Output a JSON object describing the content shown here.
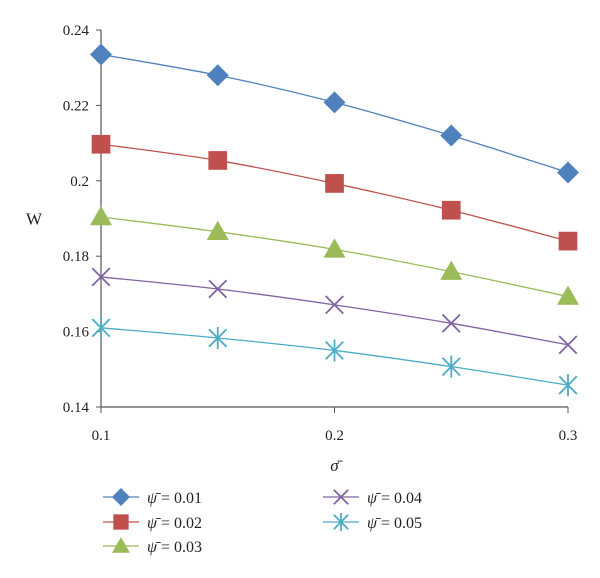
{
  "chart_data": {
    "type": "line",
    "xlabel": "σ̄",
    "ylabel": "W",
    "xlim": [
      0.1,
      0.3
    ],
    "ylim": [
      0.14,
      0.24
    ],
    "x_ticks": [
      "0.1",
      "0.2",
      "0.3"
    ],
    "y_ticks": [
      "0.14",
      "0.16",
      "0.18",
      "0.2",
      "0.22",
      "0.24"
    ],
    "x": [
      0.1,
      0.15,
      0.2,
      0.25,
      0.3
    ],
    "legend_position": "bottom",
    "series": [
      {
        "name": "ψ̄ = 0.01",
        "symbol": "ψ̄",
        "value_text": " = 0.01",
        "color": "#4F81BD",
        "marker": "diamond",
        "values": [
          0.2335,
          0.228,
          0.2208,
          0.212,
          0.2022
        ]
      },
      {
        "name": "ψ̄ = 0.02",
        "symbol": "ψ̄",
        "value_text": " = 0.02",
        "color": "#C0504D",
        "marker": "square",
        "values": [
          0.2097,
          0.2054,
          0.1993,
          0.1922,
          0.184
        ]
      },
      {
        "name": "ψ̄ = 0.03",
        "symbol": "ψ̄",
        "value_text": " = 0.03",
        "color": "#9BBB59",
        "marker": "triangle",
        "values": [
          0.1904,
          0.1865,
          0.1818,
          0.1759,
          0.1693
        ]
      },
      {
        "name": "ψ̄ = 0.04",
        "symbol": "ψ̄",
        "value_text": " = 0.04",
        "color": "#8064A2",
        "marker": "x",
        "values": [
          0.1745,
          0.1713,
          0.1671,
          0.1622,
          0.1565
        ]
      },
      {
        "name": "ψ̄ = 0.05",
        "symbol": "ψ̄",
        "value_text": " = 0.05",
        "color": "#4BACC6",
        "marker": "star",
        "values": [
          0.161,
          0.1583,
          0.155,
          0.1507,
          0.1458
        ]
      }
    ]
  }
}
